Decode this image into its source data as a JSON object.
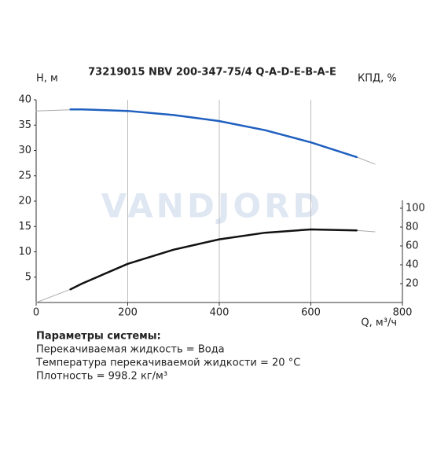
{
  "chart_data": {
    "type": "line",
    "title": "73219015 NBV 200-347-75/4 Q-A-D-E-B-A-E",
    "y_label": "H, м",
    "y2_label": "КПД, %",
    "x_label": "Q, м³/ч",
    "watermark": "VANDJORD",
    "xlim": [
      0,
      800
    ],
    "xticks": [
      0,
      200,
      400,
      600,
      800
    ],
    "ylim": [
      0,
      40
    ],
    "yticks": [
      5,
      10,
      15,
      20,
      25,
      30,
      35,
      40
    ],
    "y2lim": [
      0,
      215
    ],
    "y2ticks": [
      20,
      40,
      60,
      80,
      100
    ],
    "grid": "x",
    "series": [
      {
        "color": "#aaaaaa",
        "line_width": 1,
        "x": [
          0,
          100,
          200,
          300,
          400,
          500,
          600,
          700,
          740
        ],
        "values": [
          37.8,
          38.1,
          37.8,
          37.0,
          35.8,
          34.0,
          31.6,
          28.7,
          27.3
        ]
      },
      {
        "color": "#1e5fbf",
        "line_width": 2.5,
        "x": [
          75,
          100,
          200,
          300,
          400,
          500,
          600,
          700
        ],
        "values": [
          38.1,
          38.1,
          37.8,
          37.0,
          35.8,
          34.0,
          31.6,
          28.7
        ]
      },
      {
        "color": "#aaaaaa",
        "line_width": 1,
        "axis": "y2",
        "x": [
          0,
          75,
          100,
          200,
          300,
          400,
          500,
          600,
          700,
          740
        ],
        "values": [
          0,
          14,
          20,
          41,
          56,
          67,
          74,
          77.5,
          76.5,
          75
        ]
      },
      {
        "color": "#111111",
        "line_width": 2.5,
        "axis": "y2",
        "x": [
          75,
          100,
          200,
          300,
          400,
          500,
          600,
          700
        ],
        "values": [
          14,
          20,
          41,
          56,
          67,
          74,
          77.5,
          76.5
        ]
      }
    ]
  },
  "parameters": {
    "title": "Параметры системы:",
    "lines": [
      "Перекачиваемая жидкость = Вода",
      "Температура перекачиваемой жидкости = 20 °C",
      "Плотность = 998.2 кг/м³"
    ]
  }
}
